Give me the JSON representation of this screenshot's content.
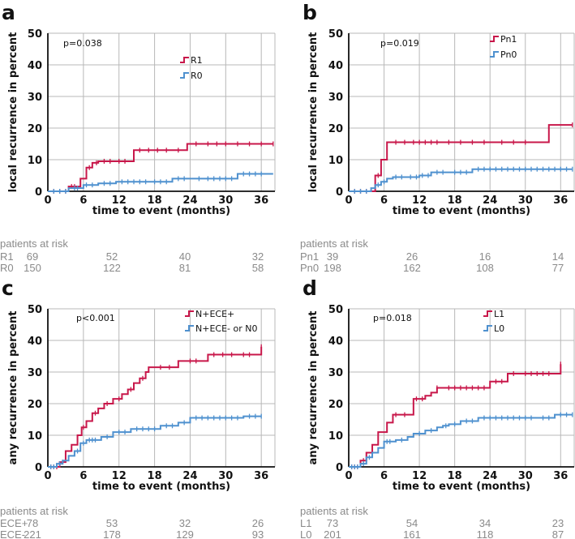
{
  "colors": {
    "red": "#c8174a",
    "blue": "#4f91cf"
  },
  "panels": [
    {
      "letter": "a",
      "ylabel": "local recurrence in percent",
      "xlabel": "time to event (months)",
      "xticks": [
        "0",
        "6",
        "12",
        "18",
        "24",
        "30",
        "36"
      ],
      "yticks": [
        "0",
        "10",
        "20",
        "30",
        "40",
        "50"
      ],
      "pvalue": "p=0.038",
      "risk_title": "patients at risk",
      "risk_rows": [
        {
          "label": "R1",
          "values": [
            "69",
            "52",
            "40",
            "32"
          ]
        },
        {
          "label": "R0",
          "values": [
            "150",
            "122",
            "81",
            "58"
          ]
        }
      ]
    },
    {
      "letter": "b",
      "ylabel": "local recurrence in percent",
      "xlabel": "time to event (months)",
      "xticks": [
        "0",
        "6",
        "12",
        "18",
        "24",
        "30",
        "36"
      ],
      "yticks": [
        "0",
        "10",
        "20",
        "30",
        "40",
        "50"
      ],
      "pvalue": "p=0.019",
      "risk_title": "patients at risk",
      "risk_rows": [
        {
          "label": "Pn1",
          "values": [
            "39",
            "26",
            "16",
            "14"
          ]
        },
        {
          "label": "Pn0",
          "values": [
            "198",
            "162",
            "108",
            "77"
          ]
        }
      ]
    },
    {
      "letter": "c",
      "ylabel": "any recurrence in percent",
      "xlabel": "time to event (months)",
      "xticks": [
        "0",
        "6",
        "12",
        "18",
        "24",
        "30",
        "36"
      ],
      "yticks": [
        "0",
        "10",
        "20",
        "30",
        "40",
        "50"
      ],
      "pvalue": "p<0.001",
      "risk_title": "patients at risk",
      "risk_rows": [
        {
          "label": "ECE+",
          "values": [
            "78",
            "53",
            "32",
            "26"
          ]
        },
        {
          "label": "ECE-",
          "values": [
            "221",
            "178",
            "129",
            "93"
          ]
        }
      ]
    },
    {
      "letter": "d",
      "ylabel": "any recurrence in percent",
      "xlabel": "time to event (months)",
      "xticks": [
        "0",
        "6",
        "12",
        "18",
        "24",
        "30",
        "36"
      ],
      "yticks": [
        "0",
        "10",
        "20",
        "30",
        "40",
        "50"
      ],
      "pvalue": "p=0.018",
      "risk_title": "patients at risk",
      "risk_rows": [
        {
          "label": "L1",
          "values": [
            "73",
            "54",
            "34",
            "23"
          ]
        },
        {
          "label": "L0",
          "values": [
            "201",
            "161",
            "118",
            "87"
          ]
        }
      ]
    }
  ],
  "chart_data": [
    {
      "type": "line",
      "step": true,
      "title": "a",
      "xlabel": "time to event (months)",
      "ylabel": "local recurrence in percent",
      "xlim": [
        0,
        36
      ],
      "ylim": [
        0,
        50
      ],
      "xticks": [
        0,
        6,
        12,
        18,
        24,
        30,
        36
      ],
      "yticks": [
        0,
        10,
        20,
        30,
        40,
        50
      ],
      "series": [
        {
          "name": "R1",
          "color": "red",
          "x": [
            0,
            3.5,
            5.5,
            6.5,
            7.5,
            8.5,
            14.5,
            23.5,
            38
          ],
          "y": [
            0,
            1.5,
            4,
            7.5,
            9,
            9.5,
            13,
            15,
            15
          ],
          "censor_x": [
            1,
            2,
            3,
            4,
            4.5,
            7,
            8.2,
            9.5,
            10.5,
            12,
            13,
            15.5,
            17,
            18.5,
            20,
            22,
            25,
            27,
            28.5,
            30,
            32,
            34,
            36,
            38
          ]
        },
        {
          "name": "R0",
          "color": "blue",
          "x": [
            0,
            3.5,
            6,
            8.5,
            11.5,
            17,
            21,
            24.5,
            32,
            38
          ],
          "y": [
            0,
            1,
            2,
            2.5,
            3,
            3,
            4,
            4,
            5.5,
            5.5
          ],
          "censor_x": [
            1,
            2,
            3,
            4.5,
            5,
            6.5,
            7.5,
            9.5,
            10.5,
            12.5,
            13.5,
            14.5,
            15.5,
            16.5,
            18,
            19,
            20,
            22,
            23,
            25.5,
            27,
            28,
            29,
            30,
            31,
            33,
            34,
            35,
            36
          ]
        }
      ],
      "legend": [
        "R1",
        "R0"
      ],
      "annotations": [
        "p=0.038"
      ]
    },
    {
      "type": "line",
      "step": true,
      "title": "b",
      "xlabel": "time to event (months)",
      "ylabel": "local recurrence in percent",
      "xlim": [
        0,
        36
      ],
      "ylim": [
        0,
        50
      ],
      "xticks": [
        0,
        6,
        12,
        18,
        24,
        30,
        36
      ],
      "yticks": [
        0,
        10,
        20,
        30,
        40,
        50
      ],
      "series": [
        {
          "name": "Pn1",
          "color": "red",
          "x": [
            0,
            4.5,
            5.5,
            6.5,
            34,
            38
          ],
          "y": [
            0,
            5,
            10,
            15.5,
            21,
            21
          ],
          "censor_x": [
            1,
            2,
            3,
            5,
            8,
            9.5,
            11,
            12,
            13,
            14,
            15,
            17,
            19,
            21,
            23,
            26,
            28,
            30,
            38
          ]
        },
        {
          "name": "Pn0",
          "color": "blue",
          "x": [
            0,
            3.8,
            4.5,
            5.5,
            6.5,
            7.5,
            10,
            12,
            14,
            17,
            21,
            38
          ],
          "y": [
            0,
            1,
            2,
            3,
            4,
            4.5,
            4.5,
            5,
            6,
            6,
            7,
            7
          ],
          "censor_x": [
            1,
            2,
            3,
            5,
            6,
            8,
            9,
            10.5,
            11.5,
            12.5,
            13.5,
            15,
            16,
            18,
            19,
            20,
            22,
            23,
            24,
            25,
            26,
            27,
            28,
            29,
            30,
            31,
            32,
            33,
            34,
            35,
            36,
            37,
            38
          ]
        }
      ],
      "legend": [
        "Pn1",
        "Pn0"
      ],
      "annotations": [
        "p=0.019"
      ]
    },
    {
      "type": "line",
      "step": true,
      "title": "c",
      "xlabel": "time to event (months)",
      "ylabel": "any recurrence in percent",
      "xlim": [
        0,
        36
      ],
      "ylim": [
        0,
        50
      ],
      "xticks": [
        0,
        6,
        12,
        18,
        24,
        30,
        36
      ],
      "yticks": [
        0,
        10,
        20,
        30,
        40,
        50
      ],
      "series": [
        {
          "name": "N+ECE+",
          "color": "red",
          "x": [
            0,
            2,
            3,
            4,
            5,
            5.7,
            6.5,
            7.5,
            8.5,
            9.5,
            11,
            12.5,
            13.5,
            14.5,
            15.5,
            16.5,
            17,
            18,
            22,
            27,
            36
          ],
          "y": [
            0,
            1.5,
            5,
            7,
            10,
            12.5,
            14.5,
            17,
            18.5,
            20,
            21.5,
            23,
            24.5,
            26.5,
            28,
            30,
            31.5,
            31.5,
            33.5,
            35.5,
            38
          ],
          "censor_x": [
            0.5,
            1,
            1.5,
            2.5,
            6,
            8,
            10,
            12,
            14,
            16,
            19,
            20.5,
            24,
            25,
            28,
            29.5,
            31,
            33,
            34,
            36
          ]
        },
        {
          "name": "N+ECE- or N0",
          "color": "blue",
          "x": [
            0,
            1.5,
            2.5,
            3.5,
            4.5,
            5.5,
            6.5,
            9,
            11,
            14,
            19,
            22,
            24,
            33,
            36
          ],
          "y": [
            0,
            1,
            2,
            3.5,
            5,
            7.5,
            8.5,
            9.5,
            11,
            12,
            13,
            14,
            15.5,
            16,
            16
          ],
          "censor_x": [
            0.5,
            1,
            2,
            5,
            6,
            7,
            7.5,
            8,
            10,
            12,
            13,
            15,
            16,
            17,
            18,
            20,
            21,
            23,
            25,
            26,
            27,
            28,
            29,
            30,
            31,
            32,
            34,
            35,
            36
          ]
        }
      ],
      "legend": [
        "N+ECE+",
        "N+ECE- or N0"
      ],
      "annotations": [
        "p<0.001"
      ]
    },
    {
      "type": "line",
      "step": true,
      "title": "d",
      "xlabel": "time to event (months)",
      "ylabel": "any recurrence in percent",
      "xlim": [
        0,
        36
      ],
      "ylim": [
        0,
        50
      ],
      "xticks": [
        0,
        6,
        12,
        18,
        24,
        30,
        36
      ],
      "yticks": [
        0,
        10,
        20,
        30,
        40,
        50
      ],
      "series": [
        {
          "name": "L1",
          "color": "red",
          "x": [
            0,
            2,
            3,
            4,
            5,
            6.5,
            7.5,
            8.5,
            11,
            13,
            14,
            15,
            16,
            24,
            27,
            36
          ],
          "y": [
            0,
            2,
            4.5,
            7,
            11,
            14,
            16.5,
            16.5,
            21.5,
            22.5,
            23.5,
            25,
            25,
            27,
            29.5,
            32.5
          ],
          "censor_x": [
            0.5,
            1,
            1.5,
            2.5,
            8,
            9.5,
            11.5,
            12.5,
            15,
            17,
            18,
            19,
            20,
            21,
            22,
            23,
            25,
            26,
            28,
            30,
            31,
            32,
            33,
            34,
            36
          ]
        },
        {
          "name": "L0",
          "color": "blue",
          "x": [
            0,
            2,
            3,
            4,
            5,
            6,
            8,
            10,
            11,
            13,
            15,
            16,
            17,
            19,
            22,
            32,
            35,
            38
          ],
          "y": [
            0,
            1,
            3,
            4.5,
            6,
            8,
            8.5,
            9.5,
            10.5,
            11.5,
            12.5,
            13,
            13.5,
            14.5,
            15.5,
            15.5,
            16.5,
            16.5
          ],
          "censor_x": [
            0.5,
            1,
            1.5,
            2.5,
            3.5,
            6.5,
            7,
            9,
            12,
            14,
            16.5,
            18,
            20,
            21,
            23,
            24,
            25,
            26,
            27,
            28,
            29,
            30,
            31,
            33,
            34,
            36,
            37,
            38
          ]
        }
      ],
      "legend": [
        "L1",
        "L0"
      ],
      "annotations": [
        "p=0.018"
      ]
    }
  ]
}
